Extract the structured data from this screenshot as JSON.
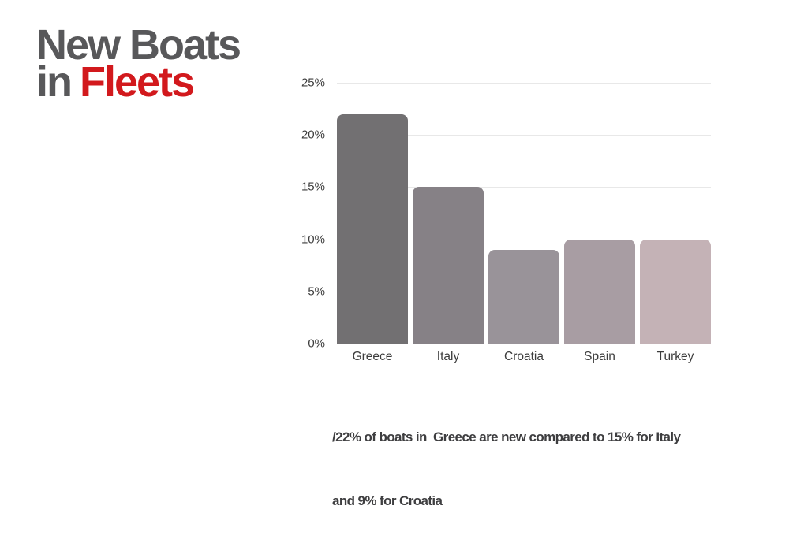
{
  "title": {
    "line1": "New Boats",
    "line2_prefix": "in",
    "line2_accent": "Fleets",
    "accent_color": "#d2191d",
    "text_color": "#58585a"
  },
  "chart_data": {
    "type": "bar",
    "title": "New Boats in Fleets",
    "categories": [
      "Greece",
      "Italy",
      "Croatia",
      "Spain",
      "Turkey"
    ],
    "values": [
      22,
      15,
      9,
      10,
      10
    ],
    "unit": "%",
    "xlabel": "",
    "ylabel": "",
    "ylim": [
      0,
      25
    ],
    "ytick_step": 5,
    "ytick_labels": [
      "25%",
      "20%",
      "15%",
      "10%",
      "5%",
      "0%"
    ],
    "bar_colors": [
      "#727072",
      "#868186",
      "#999399",
      "#a89da3",
      "#c4b2b6"
    ],
    "gridline_color": "#e8e8e8",
    "grid": true,
    "legend": false
  },
  "caption": {
    "line1": "/22% of boats in  Greece are new compared to 15% for Italy",
    "line2": "and 9% for Croatia"
  }
}
